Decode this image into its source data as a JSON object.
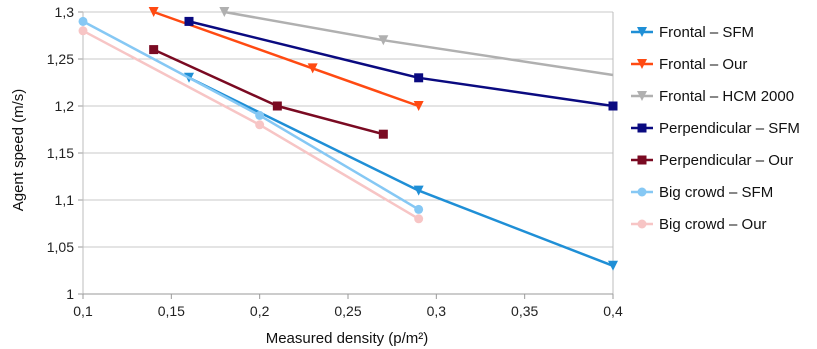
{
  "chart_data": {
    "type": "line",
    "xlabel": "Measured density (p/m²)",
    "ylabel": "Agent speed (m/s)",
    "xlim": [
      0.1,
      0.4
    ],
    "ylim": [
      1.0,
      1.3
    ],
    "x_ticks": [
      "0,1",
      "0,15",
      "0,2",
      "0,25",
      "0,3",
      "0,35",
      "0,4"
    ],
    "y_ticks": [
      "1",
      "1,05",
      "1,1",
      "1,15",
      "1,2",
      "1,25",
      "1,3"
    ],
    "grid": "horizontal",
    "legend_position": "right",
    "series": [
      {
        "name": "Frontal – SFM",
        "color": "#1f8fd6",
        "marker": "triangle-down",
        "points": [
          [
            0.16,
            1.23
          ],
          [
            0.29,
            1.11
          ],
          [
            0.4,
            1.03
          ]
        ]
      },
      {
        "name": "Frontal – Our",
        "color": "#ff4a12",
        "marker": "triangle-down",
        "points": [
          [
            0.14,
            1.3
          ],
          [
            0.23,
            1.24
          ],
          [
            0.29,
            1.2
          ]
        ]
      },
      {
        "name": "Frontal – HCM 2000",
        "color": "#b0b0b0",
        "marker": "triangle-down",
        "points": [
          [
            0.18,
            1.3
          ],
          [
            0.27,
            1.27
          ],
          [
            0.4,
            1.233
          ]
        ]
      },
      {
        "name": "Perpendicular – SFM",
        "color": "#0a0a80",
        "marker": "square",
        "points": [
          [
            0.16,
            1.29
          ],
          [
            0.29,
            1.23
          ],
          [
            0.4,
            1.2
          ]
        ]
      },
      {
        "name": "Perpendicular – Our",
        "color": "#7a0a22",
        "marker": "square",
        "points": [
          [
            0.14,
            1.26
          ],
          [
            0.21,
            1.2
          ],
          [
            0.27,
            1.17
          ]
        ]
      },
      {
        "name": "Big crowd – SFM",
        "color": "#86c8f4",
        "marker": "circle",
        "points": [
          [
            0.1,
            1.29
          ],
          [
            0.2,
            1.19
          ],
          [
            0.29,
            1.09
          ]
        ]
      },
      {
        "name": "Big crowd – Our",
        "color": "#f7c5c5",
        "marker": "circle",
        "points": [
          [
            0.1,
            1.28
          ],
          [
            0.2,
            1.18
          ],
          [
            0.29,
            1.08
          ]
        ]
      }
    ]
  }
}
